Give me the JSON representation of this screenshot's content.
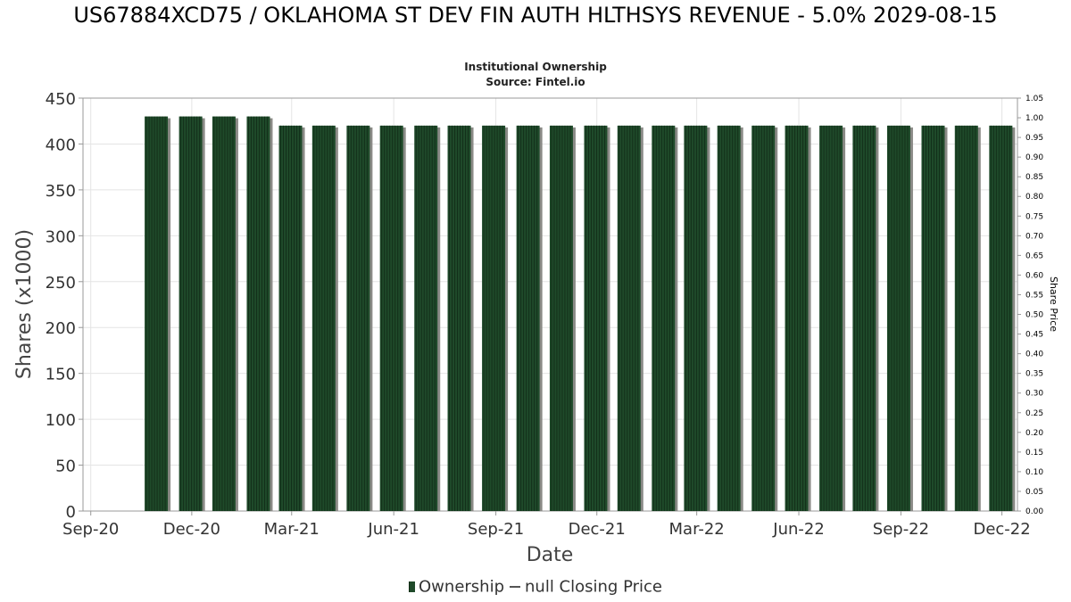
{
  "title": "US67884XCD75 / OKLAHOMA ST DEV FIN AUTH HLTHSYS REVENUE - 5.0% 2029-08-15",
  "subtitle": "Institutional Ownership",
  "source": "Source: Fintel.io",
  "legend": {
    "ownership": "Ownership",
    "price": "null Closing Price"
  },
  "colors": {
    "bar": "#1f4a2a",
    "bar_shadow": "#8a8a86",
    "grid": "#e4e4e4"
  },
  "chart_data": {
    "type": "bar",
    "xlabel": "Date",
    "ylabel": "Shares (x1000)",
    "y2label": "Share Price",
    "ylim": [
      0,
      450
    ],
    "y2lim": [
      0,
      1.05
    ],
    "yticks": [
      "0",
      "50",
      "100",
      "150",
      "200",
      "250",
      "300",
      "350",
      "400",
      "450"
    ],
    "y2ticks": [
      "0.00",
      "0.05",
      "0.10",
      "0.15",
      "0.20",
      "0.25",
      "0.30",
      "0.35",
      "0.40",
      "0.45",
      "0.50",
      "0.55",
      "0.60",
      "0.65",
      "0.70",
      "0.75",
      "0.80",
      "0.85",
      "0.90",
      "0.95",
      "1.00",
      "1.05"
    ],
    "xticks": [
      {
        "label": "Sep-20",
        "date": "2020-09-01"
      },
      {
        "label": "Dec-20",
        "date": "2020-12-01"
      },
      {
        "label": "Mar-21",
        "date": "2021-03-01"
      },
      {
        "label": "Jun-21",
        "date": "2021-06-01"
      },
      {
        "label": "Sep-21",
        "date": "2021-09-01"
      },
      {
        "label": "Dec-21",
        "date": "2021-12-01"
      },
      {
        "label": "Mar-22",
        "date": "2022-03-01"
      },
      {
        "label": "Jun-22",
        "date": "2022-06-01"
      },
      {
        "label": "Sep-22",
        "date": "2022-09-01"
      },
      {
        "label": "Dec-22",
        "date": "2022-12-01"
      }
    ],
    "xlim": [
      "2020-08-25",
      "2022-12-15"
    ],
    "series": [
      {
        "name": "Ownership",
        "points": [
          {
            "date": "2020-10-30",
            "value": 430
          },
          {
            "date": "2020-11-30",
            "value": 430
          },
          {
            "date": "2020-12-30",
            "value": 430
          },
          {
            "date": "2021-01-30",
            "value": 430
          },
          {
            "date": "2021-02-28",
            "value": 420
          },
          {
            "date": "2021-03-30",
            "value": 420
          },
          {
            "date": "2021-04-30",
            "value": 420
          },
          {
            "date": "2021-05-30",
            "value": 420
          },
          {
            "date": "2021-06-30",
            "value": 420
          },
          {
            "date": "2021-07-30",
            "value": 420
          },
          {
            "date": "2021-08-30",
            "value": 420
          },
          {
            "date": "2021-09-30",
            "value": 420
          },
          {
            "date": "2021-10-30",
            "value": 420
          },
          {
            "date": "2021-11-30",
            "value": 420
          },
          {
            "date": "2021-12-30",
            "value": 420
          },
          {
            "date": "2022-01-30",
            "value": 420
          },
          {
            "date": "2022-02-28",
            "value": 420
          },
          {
            "date": "2022-03-30",
            "value": 420
          },
          {
            "date": "2022-04-30",
            "value": 420
          },
          {
            "date": "2022-05-30",
            "value": 420
          },
          {
            "date": "2022-06-30",
            "value": 420
          },
          {
            "date": "2022-07-30",
            "value": 420
          },
          {
            "date": "2022-08-30",
            "value": 420
          },
          {
            "date": "2022-09-30",
            "value": 420
          },
          {
            "date": "2022-10-30",
            "value": 420
          },
          {
            "date": "2022-11-30",
            "value": 420
          }
        ]
      }
    ],
    "grid": true,
    "legend_position": "bottom-center"
  }
}
